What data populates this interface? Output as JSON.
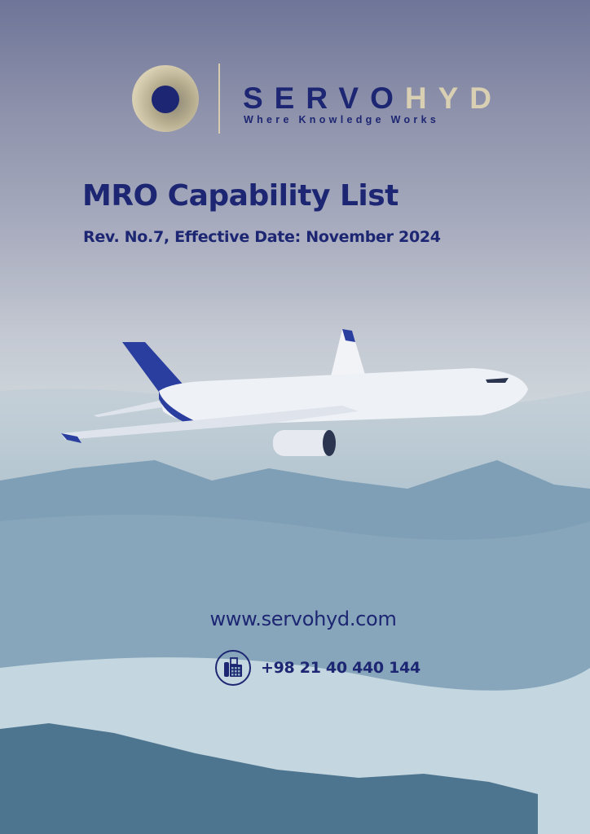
{
  "brand": {
    "name_part1": "SERVO",
    "name_part2": "HYD",
    "tagline": "Where Knowledge Works",
    "colors": {
      "navy": "#1d2672",
      "gold": "#d9cfb3"
    }
  },
  "document": {
    "title": "MRO Capability List",
    "revision": "Rev. No.7, Effective Date: November 2024"
  },
  "contact": {
    "website": "www.servohyd.com",
    "phone": "+98 21 40 440 144",
    "phone_icon": "fax-phone-icon"
  }
}
